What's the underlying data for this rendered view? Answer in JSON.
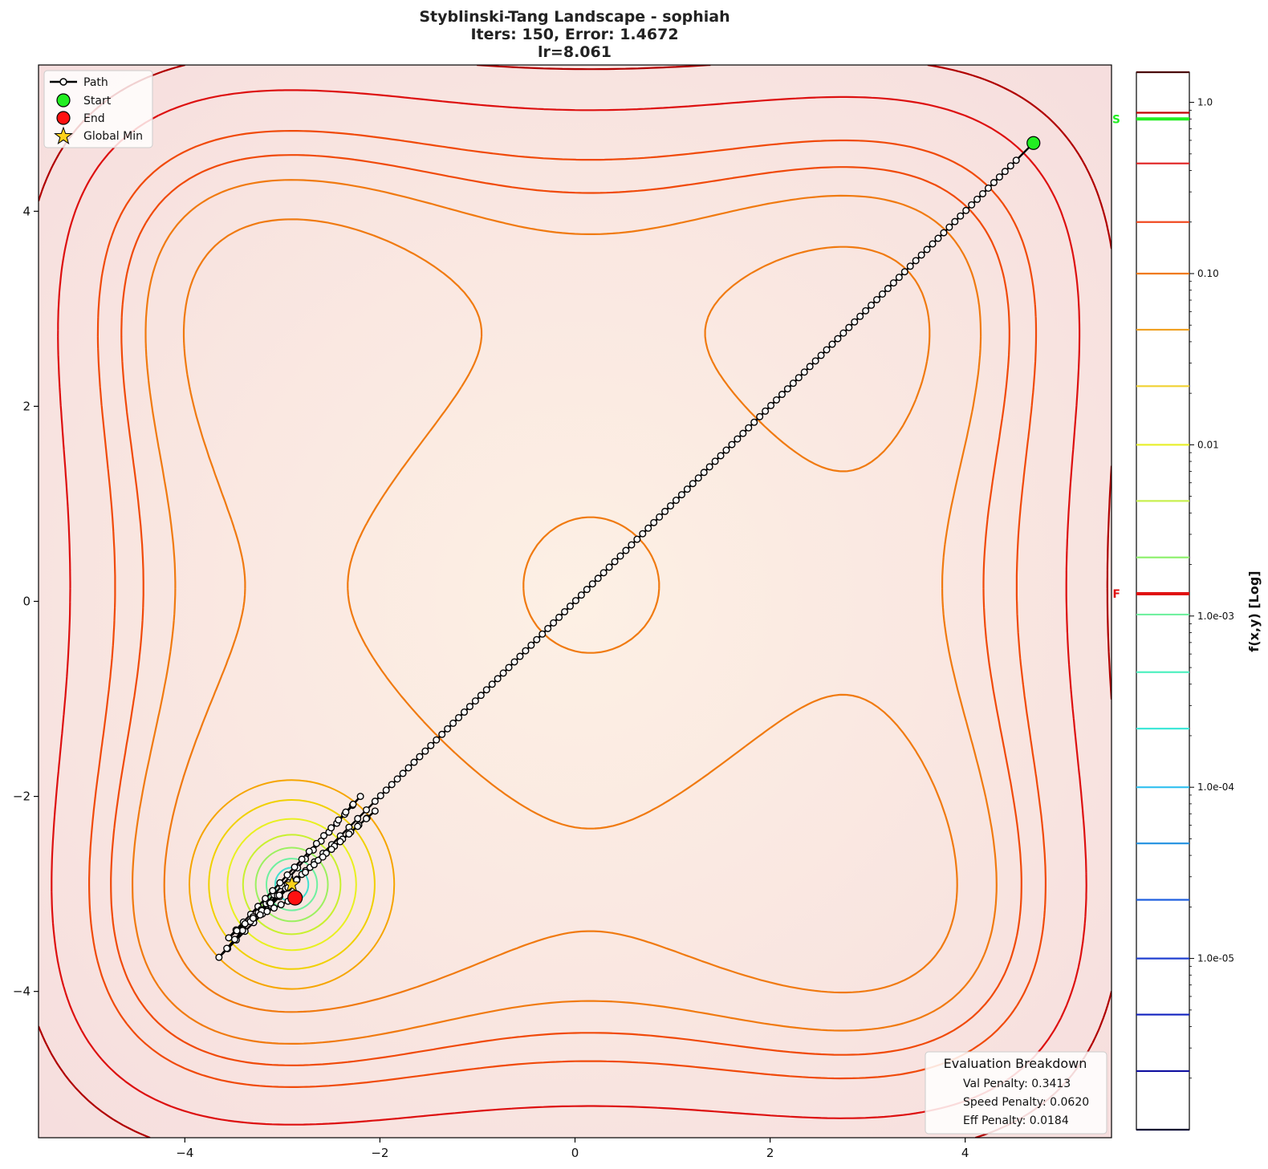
{
  "chart_data": {
    "type": "contour",
    "title_lines": [
      "Styblinski-Tang Landscape - sophiah",
      "Iters: 150, Error: 1.4672",
      "lr=8.061"
    ],
    "xlim": [
      -5.5,
      5.5
    ],
    "ylim": [
      -5.5,
      5.5
    ],
    "x_ticks": [
      -4,
      -2,
      0,
      2,
      4
    ],
    "y_ticks": [
      -4,
      -2,
      0,
      2,
      4
    ],
    "x_tick_labels": [
      "−4",
      "−2",
      "0",
      "2",
      "4"
    ],
    "y_tick_labels": [
      "−4",
      "−2",
      "0",
      "2",
      "4"
    ],
    "grid": false,
    "legend": {
      "placement": "upper-left",
      "entries": [
        "Path",
        "Start",
        "End",
        "Global Min"
      ]
    },
    "start": {
      "x": 4.7,
      "y": 4.7
    },
    "end": {
      "x": -2.87,
      "y": -3.04
    },
    "global_min": {
      "x": -2.9035,
      "y": -2.9035
    },
    "path": {
      "color": "#000000",
      "marker_fill": "#ffffff",
      "segments": [
        {
          "from": [
            4.58,
            4.58
          ],
          "to": [
            -2.05,
            -2.05
          ],
          "points": 116
        },
        {
          "from": [
            -2.05,
            -2.05
          ],
          "to": [
            -3.65,
            -3.65
          ],
          "points": 18
        },
        {
          "from": [
            -3.65,
            -3.65
          ],
          "to": [
            -2.2,
            -2.0
          ],
          "points": 18
        },
        {
          "from": [
            -2.2,
            -2.0
          ],
          "to": [
            -3.55,
            -3.45
          ],
          "points": 18
        },
        {
          "from": [
            -3.55,
            -3.45
          ],
          "to": [
            -2.05,
            -2.15
          ],
          "points": 18
        },
        {
          "from": [
            -2.05,
            -2.15
          ],
          "to": [
            -3.3,
            -3.25
          ],
          "points": 14
        },
        {
          "from": [
            -3.3,
            -3.25
          ],
          "to": [
            -2.87,
            -3.04
          ],
          "points": 6
        }
      ]
    },
    "contours": [
      {
        "c": 0,
        "r": 5.05,
        "color": "#b00000"
      },
      {
        "c": 1,
        "r": 4.45,
        "color": "#dd1010"
      },
      {
        "c": 2,
        "r": 3.9,
        "color": "#f04a0a"
      },
      {
        "c": 3,
        "r": 3.6,
        "color": "#f07a10"
      },
      {
        "c": 4,
        "r": 2.5,
        "color": "#f07a10"
      },
      {
        "c": 5,
        "r": 1.55,
        "color": "#f07a10"
      },
      {
        "c": 6,
        "r": 0.6,
        "color": "#f07a10"
      }
    ],
    "rings": [
      {
        "r": 1.05,
        "color": "#f5a500"
      },
      {
        "r": 0.85,
        "color": "#f0d000"
      },
      {
        "r": 0.66,
        "color": "#e8f020"
      },
      {
        "r": 0.5,
        "color": "#c8f030"
      },
      {
        "r": 0.37,
        "color": "#9cf060"
      },
      {
        "r": 0.26,
        "color": "#6ff0a0"
      },
      {
        "r": 0.17,
        "color": "#40e0d0"
      }
    ],
    "colorbar": {
      "label": "f(x,y) [Log]",
      "scale": "log",
      "range": [
        1e-06,
        1.5
      ],
      "tick_values": [
        1.0,
        0.1,
        0.01,
        0.001,
        0.0001,
        1e-05
      ],
      "tick_labels": [
        "1.0",
        "0.10",
        "0.01",
        "1.0e-03",
        "1.0e-04",
        "1.0e-05"
      ],
      "level_values": [
        1.5,
        0.87,
        0.44,
        0.2,
        0.1,
        0.047,
        0.022,
        0.01,
        0.0047,
        0.0022,
        0.00102,
        0.00047,
        0.00022,
        0.0001,
        4.7e-05,
        2.2e-05,
        1e-05,
        4.7e-06,
        2.2e-06,
        1e-06
      ],
      "level_colors": [
        "#4a0000",
        "#c00000",
        "#e02020",
        "#f04a20",
        "#f07a10",
        "#f0a020",
        "#f0d030",
        "#e8f030",
        "#c8f050",
        "#90f070",
        "#70f0a0",
        "#50f0c0",
        "#40e8d8",
        "#30c0f0",
        "#2090e0",
        "#2060e0",
        "#2040d0",
        "#1020c0",
        "#1010a0",
        "#000030"
      ],
      "start_marker": {
        "label": "S",
        "value": 0.8,
        "color": "#22ee22"
      },
      "end_marker": {
        "label": "F",
        "value": 0.00135,
        "color": "#e01010"
      }
    },
    "eval_box": {
      "title": "Evaluation Breakdown",
      "lines": [
        "Val Penalty: 0.3413",
        "Speed Penalty: 0.0620",
        "Eff Penalty: 0.0184"
      ]
    }
  }
}
